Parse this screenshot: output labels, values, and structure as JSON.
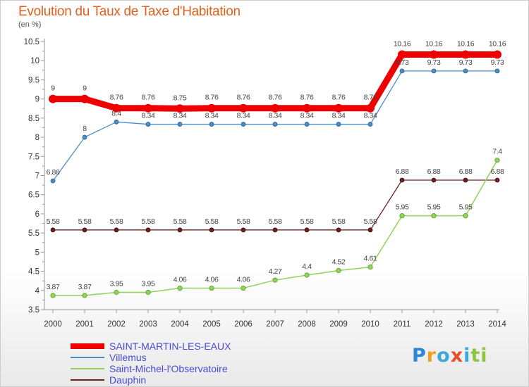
{
  "header": {
    "title": "Evolution du Taux de Taxe d'Habitation",
    "unit": "(en %)"
  },
  "logo": {
    "letters": [
      "P",
      "r",
      "o",
      "x",
      "i",
      "t",
      "i"
    ]
  },
  "chart_data": {
    "type": "line",
    "title": "Evolution du Taux de Taxe d'Habitation",
    "subtitle": "(en %)",
    "xlabel": "",
    "ylabel": "",
    "x": [
      "2000",
      "2001",
      "2002",
      "2003",
      "2004",
      "2005",
      "2006",
      "2007",
      "2008",
      "2009",
      "2010",
      "2011",
      "2012",
      "2013",
      "2014"
    ],
    "ylim": [
      3.5,
      10.5
    ],
    "yticks": [
      "3.5",
      "4",
      "4.5",
      "5",
      "5.5",
      "6",
      "6.5",
      "7",
      "7.5",
      "8",
      "8.5",
      "9",
      "9.5",
      "10",
      "10.5"
    ],
    "grid": false,
    "legend_position": "bottom-left",
    "series": [
      {
        "name": "SAINT-MARTIN-LES-EAUX",
        "color": "#ee0000",
        "values": [
          9,
          9,
          8.76,
          8.76,
          8.75,
          8.76,
          8.76,
          8.76,
          8.76,
          8.76,
          8.76,
          10.16,
          10.16,
          10.16,
          10.16
        ],
        "labels": [
          "9",
          "9",
          "8.76",
          "8.76",
          "8.75",
          "8.76",
          "8.76",
          "8.76",
          "8.76",
          "8.76",
          "8.76",
          "10.16",
          "10.16",
          "10.16",
          "10.16"
        ]
      },
      {
        "name": "Villemus",
        "color": "#4a8ec8",
        "values": [
          6.86,
          8,
          8.4,
          8.34,
          8.34,
          8.34,
          8.34,
          8.34,
          8.34,
          8.34,
          8.34,
          9.73,
          9.73,
          9.73,
          9.73
        ],
        "labels": [
          "6.86",
          "8",
          "8.4",
          "8.34",
          "8.34",
          "8.34",
          "8.34",
          "8.34",
          "8.34",
          "8.34",
          "8.34",
          "9.73",
          "9.73",
          "9.73",
          "9.73"
        ]
      },
      {
        "name": "Saint-Michel-l'Observatoire",
        "color": "#8fd45a",
        "values": [
          3.87,
          3.87,
          3.95,
          3.95,
          4.06,
          4.06,
          4.06,
          4.27,
          4.4,
          4.52,
          4.61,
          5.95,
          5.95,
          5.95,
          7.4
        ],
        "labels": [
          "3.87",
          "3.87",
          "3.95",
          "3.95",
          "4.06",
          "4.06",
          "4.06",
          "4.27",
          "4.4",
          "4.52",
          "4.61",
          "5.95",
          "5.95",
          "5.95",
          "7.4"
        ]
      },
      {
        "name": "Dauphin",
        "color": "#6b2020",
        "values": [
          5.58,
          5.58,
          5.58,
          5.58,
          5.58,
          5.58,
          5.58,
          5.58,
          5.58,
          5.58,
          5.58,
          6.88,
          6.88,
          6.88,
          6.88
        ],
        "labels": [
          "5.58",
          "5.58",
          "5.58",
          "5.58",
          "5.58",
          "5.58",
          "5.58",
          "5.58",
          "5.58",
          "5.58",
          "5.58",
          "6.88",
          "6.88",
          "6.88",
          "6.88"
        ]
      }
    ]
  }
}
